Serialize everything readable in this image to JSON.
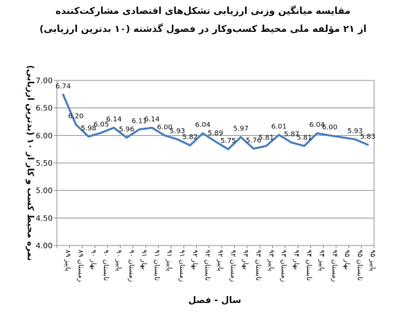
{
  "chart_data": {
    "type": "line",
    "title": "مقایسه میانگین وزنی ارزیابی تشکل‌های اقتصادی مشارکت‌کننده",
    "subtitle": "از ۲۱ مؤلفه ملی محیط کسب‌وکار در فصول گذشته (۱۰ بدترین ارزیابی)",
    "xlabel": "سال - فصل",
    "ylabel": "نمره محیط کسب و کار از ۱۰ (بدترین ارزیابی)",
    "ylim": [
      4.0,
      7.0
    ],
    "yticks": [
      "4.00",
      "4.50",
      "5.00",
      "5.50",
      "6.00",
      "6.50",
      "7.00"
    ],
    "grid": true,
    "line_color": "#4f81bd",
    "categories": [
      "پاییز ۸۹",
      "زمستان ۸۹",
      "بهار ۹۰",
      "تابستان ۹۰",
      "پاییز ۹۰",
      "زمستان ۹۰",
      "بهار ۹۱",
      "تابستان ۹۱",
      "پاییز ۹۱",
      "زمستان ۹۱",
      "بهار ۹۲",
      "تابستان ۹۲",
      "پاییز ۹۲",
      "زمستان ۹۲",
      "بهار ۹۳",
      "تابستان ۹۳",
      "پاییز ۹۳",
      "زمستان ۹۳",
      "بهار ۹۴",
      "تابستان ۹۴",
      "پاییز ۹۴",
      "زمستان ۹۴",
      "بهار ۹۵",
      "تابستان ۹۵",
      "پاییز ۹۵"
    ],
    "values": [
      6.74,
      6.2,
      5.98,
      6.05,
      6.14,
      5.96,
      6.11,
      6.14,
      6.0,
      5.93,
      5.82,
      6.04,
      5.89,
      5.75,
      5.97,
      5.76,
      5.81,
      6.01,
      5.87,
      5.81,
      6.04,
      6.0,
      null,
      5.93,
      5.83
    ],
    "value_labels": [
      "6.74",
      "6.20",
      "5.98",
      "6.05",
      "6.14",
      "5.96",
      "6.11",
      "6.14",
      "6.00",
      "5.93",
      "5.82",
      "6.04",
      "5.89",
      "5.75",
      "5.97",
      "5.76",
      "5.81",
      "6.01",
      "5.87",
      "5.81",
      "6.04",
      "6.00",
      "",
      "5.93",
      "5.83"
    ]
  }
}
